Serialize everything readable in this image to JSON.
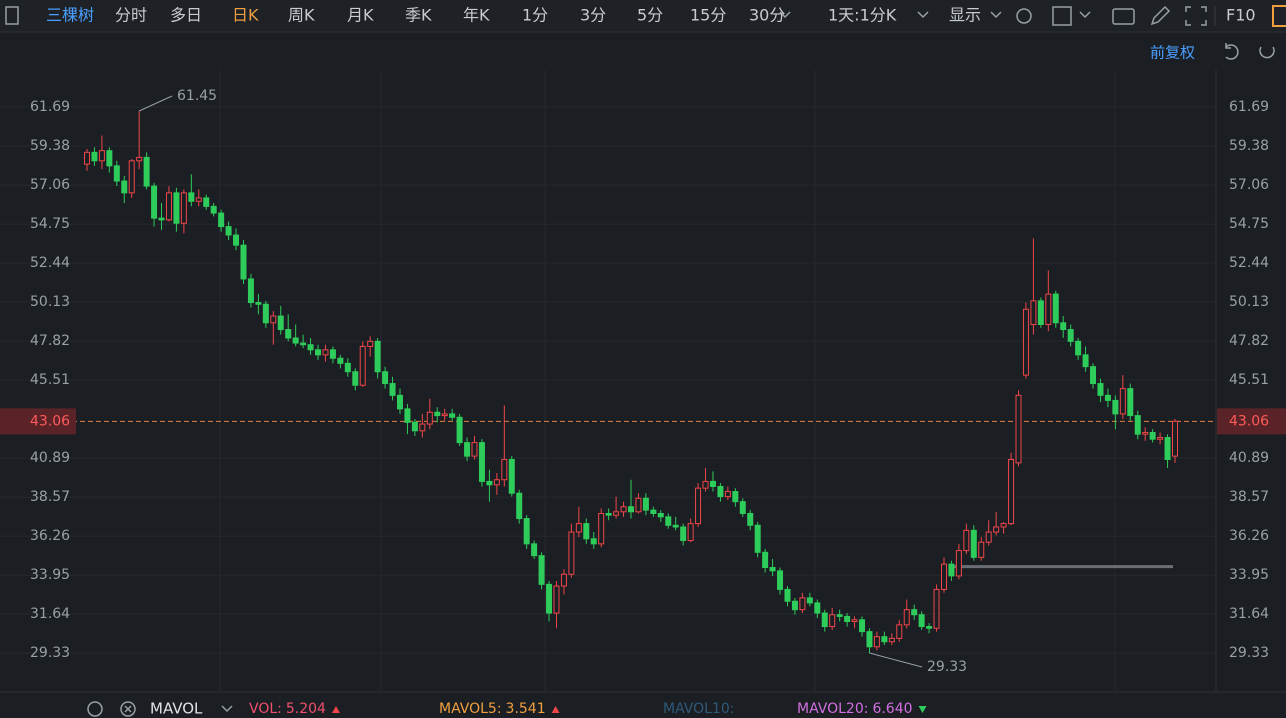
{
  "toolbar": {
    "stock": "三棵树",
    "tabs": [
      "分时",
      "多日",
      "日K",
      "周K",
      "月K",
      "季K",
      "年K",
      "1分",
      "3分",
      "5分",
      "15分",
      "30分"
    ],
    "active_tab": 2,
    "interval": "1天:1分K",
    "display": "显示",
    "f10": "F10"
  },
  "adjust": "前复权",
  "chart_data": {
    "type": "candlestick",
    "ylim": [
      27.14,
      63.88
    ],
    "yticks": [
      61.69,
      59.38,
      57.06,
      54.75,
      52.44,
      50.13,
      47.82,
      45.51,
      43.06,
      40.89,
      38.57,
      36.26,
      33.95,
      31.64,
      29.33
    ],
    "grid": true,
    "last_price": 43.06,
    "up_color": "#f0464a",
    "down_color": "#2ecc5a",
    "max_label": 61.45,
    "min_label": 29.33,
    "level_line": 34.45,
    "ohlc": [
      [
        58.3,
        59.2,
        57.9,
        59.0
      ],
      [
        59.0,
        59.3,
        58.2,
        58.5
      ],
      [
        58.5,
        60.0,
        58.0,
        59.1
      ],
      [
        59.1,
        59.3,
        57.8,
        58.2
      ],
      [
        58.2,
        58.5,
        57.0,
        57.3
      ],
      [
        57.3,
        57.6,
        56.0,
        56.6
      ],
      [
        56.6,
        58.6,
        56.3,
        58.5
      ],
      [
        58.5,
        61.45,
        58.0,
        58.7
      ],
      [
        58.7,
        59.0,
        56.8,
        57.0
      ],
      [
        57.0,
        57.2,
        54.6,
        55.1
      ],
      [
        55.1,
        56.0,
        54.4,
        55.0
      ],
      [
        55.0,
        57.0,
        54.9,
        56.6
      ],
      [
        56.6,
        56.9,
        54.3,
        54.8
      ],
      [
        54.8,
        56.8,
        54.2,
        56.6
      ],
      [
        56.6,
        57.7,
        55.8,
        56.1
      ],
      [
        56.1,
        56.8,
        55.8,
        56.3
      ],
      [
        56.3,
        56.5,
        55.6,
        55.8
      ],
      [
        55.8,
        56.0,
        55.2,
        55.4
      ],
      [
        55.4,
        55.6,
        54.3,
        54.6
      ],
      [
        54.6,
        54.9,
        53.8,
        54.1
      ],
      [
        54.1,
        54.5,
        53.2,
        53.5
      ],
      [
        53.5,
        53.8,
        51.2,
        51.5
      ],
      [
        51.5,
        51.8,
        49.8,
        50.1
      ],
      [
        50.1,
        50.6,
        49.4,
        50.0
      ],
      [
        50.0,
        50.2,
        48.6,
        48.9
      ],
      [
        48.9,
        49.6,
        47.6,
        49.3
      ],
      [
        49.3,
        49.9,
        48.2,
        48.5
      ],
      [
        48.5,
        49.4,
        47.8,
        48.0
      ],
      [
        48.0,
        48.8,
        47.5,
        47.7
      ],
      [
        47.7,
        48.2,
        47.4,
        47.6
      ],
      [
        47.6,
        48.0,
        47.0,
        47.3
      ],
      [
        47.3,
        47.6,
        46.7,
        47.0
      ],
      [
        47.0,
        47.6,
        46.6,
        47.3
      ],
      [
        47.3,
        47.5,
        46.5,
        46.8
      ],
      [
        46.8,
        47.0,
        46.2,
        46.5
      ],
      [
        46.5,
        46.8,
        45.7,
        46.0
      ],
      [
        46.0,
        46.2,
        44.9,
        45.2
      ],
      [
        45.2,
        47.8,
        45.1,
        47.5
      ],
      [
        47.5,
        48.1,
        46.9,
        47.8
      ],
      [
        47.8,
        48.0,
        45.6,
        46.0
      ],
      [
        46.0,
        46.3,
        45.0,
        45.3
      ],
      [
        45.3,
        45.7,
        44.3,
        44.6
      ],
      [
        44.6,
        45.0,
        43.5,
        43.8
      ],
      [
        43.8,
        44.1,
        42.3,
        43.0
      ],
      [
        43.0,
        43.2,
        42.2,
        42.5
      ],
      [
        42.5,
        43.5,
        42.1,
        42.9
      ],
      [
        42.9,
        44.4,
        42.6,
        43.6
      ],
      [
        43.6,
        43.9,
        43.0,
        43.4
      ],
      [
        43.4,
        43.8,
        43.1,
        43.5
      ],
      [
        43.5,
        43.8,
        43.1,
        43.3
      ],
      [
        43.3,
        43.5,
        41.6,
        41.8
      ],
      [
        41.8,
        42.1,
        40.7,
        41.0
      ],
      [
        41.0,
        42.2,
        40.8,
        41.8
      ],
      [
        41.8,
        42.0,
        39.2,
        39.5
      ],
      [
        39.5,
        40.2,
        38.3,
        39.3
      ],
      [
        39.3,
        40.0,
        38.7,
        39.6
      ],
      [
        39.6,
        44.0,
        39.2,
        40.8
      ],
      [
        40.8,
        41.0,
        38.6,
        38.8
      ],
      [
        38.8,
        39.0,
        37.0,
        37.3
      ],
      [
        37.3,
        37.5,
        35.5,
        35.8
      ],
      [
        35.8,
        36.0,
        34.9,
        35.1
      ],
      [
        35.1,
        35.3,
        33.1,
        33.4
      ],
      [
        33.4,
        33.6,
        31.2,
        31.7
      ],
      [
        31.7,
        33.6,
        30.8,
        33.3
      ],
      [
        33.3,
        34.3,
        32.8,
        34.0
      ],
      [
        34.0,
        37.0,
        33.8,
        36.5
      ],
      [
        36.5,
        38.0,
        36.2,
        37.0
      ],
      [
        37.0,
        37.3,
        35.8,
        36.1
      ],
      [
        36.1,
        36.5,
        35.5,
        35.8
      ],
      [
        35.8,
        37.9,
        35.6,
        37.6
      ],
      [
        37.6,
        37.9,
        37.2,
        37.5
      ],
      [
        37.5,
        38.6,
        37.3,
        37.7
      ],
      [
        37.7,
        38.3,
        37.4,
        38.0
      ],
      [
        38.0,
        39.6,
        37.3,
        37.7
      ],
      [
        37.7,
        38.8,
        37.6,
        38.5
      ],
      [
        38.5,
        38.8,
        37.5,
        37.8
      ],
      [
        37.8,
        38.0,
        37.4,
        37.6
      ],
      [
        37.6,
        37.8,
        37.1,
        37.4
      ],
      [
        37.4,
        37.6,
        36.7,
        36.9
      ],
      [
        36.9,
        37.4,
        36.6,
        36.8
      ],
      [
        36.8,
        37.0,
        35.7,
        36.0
      ],
      [
        36.0,
        37.3,
        35.9,
        37.0
      ],
      [
        37.0,
        39.4,
        36.8,
        39.1
      ],
      [
        39.1,
        40.3,
        38.9,
        39.5
      ],
      [
        39.5,
        40.1,
        38.9,
        39.2
      ],
      [
        39.2,
        39.4,
        38.3,
        38.6
      ],
      [
        38.6,
        39.2,
        38.4,
        38.9
      ],
      [
        38.9,
        39.1,
        38.0,
        38.3
      ],
      [
        38.3,
        38.5,
        37.4,
        37.6
      ],
      [
        37.6,
        37.8,
        36.6,
        36.9
      ],
      [
        36.9,
        37.1,
        35.0,
        35.3
      ],
      [
        35.3,
        35.5,
        34.1,
        34.4
      ],
      [
        34.4,
        34.9,
        33.9,
        34.2
      ],
      [
        34.2,
        34.4,
        32.8,
        33.1
      ],
      [
        33.1,
        33.3,
        32.1,
        32.4
      ],
      [
        32.4,
        32.6,
        31.6,
        31.9
      ],
      [
        31.9,
        32.9,
        31.7,
        32.6
      ],
      [
        32.6,
        32.9,
        32.1,
        32.3
      ],
      [
        32.3,
        32.5,
        31.4,
        31.7
      ],
      [
        31.7,
        31.9,
        30.6,
        30.9
      ],
      [
        30.9,
        32.0,
        30.7,
        31.6
      ],
      [
        31.6,
        31.9,
        31.2,
        31.5
      ],
      [
        31.5,
        31.7,
        30.9,
        31.2
      ],
      [
        31.2,
        31.5,
        30.8,
        31.3
      ],
      [
        31.3,
        31.5,
        30.3,
        30.6
      ],
      [
        30.6,
        30.8,
        29.33,
        29.7
      ],
      [
        29.7,
        30.6,
        29.5,
        30.3
      ],
      [
        30.3,
        30.6,
        29.8,
        30.0
      ],
      [
        30.0,
        30.5,
        29.8,
        30.2
      ],
      [
        30.2,
        31.3,
        30.0,
        31.0
      ],
      [
        31.0,
        32.5,
        30.8,
        31.9
      ],
      [
        31.9,
        32.2,
        31.3,
        31.6
      ],
      [
        31.6,
        31.8,
        30.7,
        30.9
      ],
      [
        30.9,
        31.1,
        30.5,
        30.8
      ],
      [
        30.8,
        33.4,
        30.6,
        33.1
      ],
      [
        33.1,
        35.0,
        32.9,
        34.6
      ],
      [
        34.6,
        34.8,
        33.6,
        33.9
      ],
      [
        33.9,
        35.8,
        33.7,
        35.4
      ],
      [
        35.4,
        37.0,
        35.2,
        36.6
      ],
      [
        36.6,
        36.9,
        34.8,
        35.0
      ],
      [
        35.0,
        36.2,
        34.8,
        35.9
      ],
      [
        35.9,
        37.2,
        35.7,
        36.5
      ],
      [
        36.5,
        37.7,
        36.3,
        36.8
      ],
      [
        36.8,
        37.1,
        36.4,
        37.0
      ],
      [
        37.0,
        41.2,
        36.9,
        40.8
      ],
      [
        40.6,
        44.9,
        40.4,
        44.6
      ],
      [
        45.8,
        50.1,
        45.6,
        49.7
      ],
      [
        48.8,
        53.9,
        48.2,
        50.2
      ],
      [
        50.2,
        50.4,
        48.6,
        48.8
      ],
      [
        48.8,
        52.0,
        48.4,
        50.6
      ],
      [
        50.6,
        50.8,
        48.6,
        48.9
      ],
      [
        48.9,
        49.3,
        48.0,
        48.5
      ],
      [
        48.5,
        48.8,
        47.5,
        47.8
      ],
      [
        47.8,
        48.0,
        46.7,
        47.0
      ],
      [
        47.0,
        47.5,
        46.0,
        46.3
      ],
      [
        46.3,
        46.5,
        45.0,
        45.3
      ],
      [
        45.3,
        45.6,
        44.2,
        44.6
      ],
      [
        44.6,
        45.0,
        43.9,
        44.3
      ],
      [
        44.3,
        44.6,
        42.6,
        43.5
      ],
      [
        43.5,
        45.8,
        43.2,
        45.0
      ],
      [
        45.0,
        45.3,
        43.1,
        43.4
      ],
      [
        43.4,
        43.7,
        42.0,
        42.3
      ],
      [
        42.3,
        42.7,
        41.9,
        42.4
      ],
      [
        42.4,
        42.6,
        41.8,
        42.0
      ],
      [
        42.0,
        42.4,
        41.7,
        42.1
      ],
      [
        42.1,
        42.3,
        40.3,
        40.8
      ],
      [
        41.0,
        43.2,
        40.6,
        43.06
      ]
    ]
  },
  "indicators": {
    "name": "MAVOL",
    "items": [
      {
        "label": "VOL:",
        "value": "5.204",
        "color": "#f0506e",
        "arrow": "up"
      },
      {
        "label": "MAVOL5:",
        "value": "3.541",
        "color": "#f0a040",
        "arrow": "up"
      },
      {
        "label": "MAVOL10:",
        "color": "#2e5a7a"
      },
      {
        "label": "MAVOL20:",
        "value": "6.640",
        "color": "#d070e0",
        "arrow": "down"
      }
    ]
  }
}
